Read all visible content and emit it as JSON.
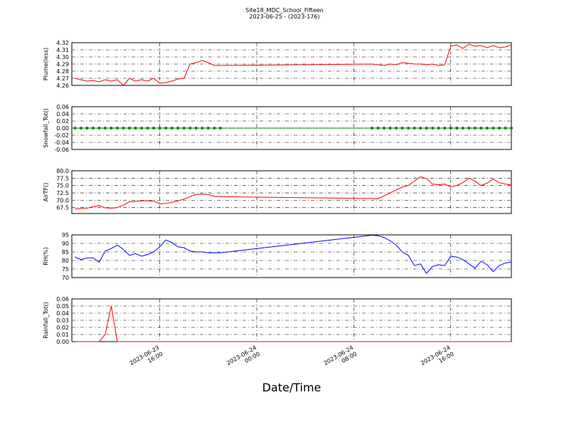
{
  "chart_data": [
    {
      "type": "line",
      "title": "Site18_MDC_School_Fifteen",
      "subtitle": "2023-06-25 - (2023-176)",
      "ylabel": "Plume(less)",
      "color": "#ff0000",
      "x": [
        "2023-06-23 09:00",
        "2023-06-23 09:30",
        "2023-06-23 10:00",
        "2023-06-23 10:30",
        "2023-06-23 11:00",
        "2023-06-23 11:30",
        "2023-06-23 12:00",
        "2023-06-23 12:30",
        "2023-06-23 13:00",
        "2023-06-23 13:30",
        "2023-06-23 14:00",
        "2023-06-23 14:30",
        "2023-06-23 15:00",
        "2023-06-23 15:30",
        "2023-06-23 16:00",
        "2023-06-23 16:30",
        "2023-06-23 17:00",
        "2023-06-23 17:30",
        "2023-06-23 18:00",
        "2023-06-23 18:30",
        "2023-06-23 19:00",
        "2023-06-23 19:30",
        "2023-06-23 20:00",
        "2023-06-23 20:30",
        "2023-06-23 21:00",
        "2023-06-24 09:30",
        "2023-06-24 10:00",
        "2023-06-24 10:30",
        "2023-06-24 11:00",
        "2023-06-24 11:30",
        "2023-06-24 12:00",
        "2023-06-24 12:30",
        "2023-06-24 13:00",
        "2023-06-24 13:30",
        "2023-06-24 14:00",
        "2023-06-24 14:30",
        "2023-06-24 15:00",
        "2023-06-24 15:30",
        "2023-06-24 16:00",
        "2023-06-24 16:30",
        "2023-06-24 17:00",
        "2023-06-24 17:30",
        "2023-06-24 18:00",
        "2023-06-24 18:30",
        "2023-06-24 19:00",
        "2023-06-24 19:30",
        "2023-06-24 20:00",
        "2023-06-24 20:30",
        "2023-06-24 21:00"
      ],
      "values": [
        4.27,
        4.268,
        4.266,
        4.267,
        4.265,
        4.268,
        4.266,
        4.268,
        4.26,
        4.27,
        4.266,
        4.268,
        4.266,
        4.27,
        4.263,
        4.264,
        4.266,
        4.269,
        4.27,
        4.29,
        4.292,
        4.295,
        4.292,
        4.288,
        4.288,
        4.29,
        4.289,
        4.288,
        4.29,
        4.289,
        4.292,
        4.291,
        4.29,
        4.29,
        4.289,
        4.29,
        4.288,
        4.289,
        4.315,
        4.317,
        4.312,
        4.318,
        4.315,
        4.316,
        4.313,
        4.316,
        4.313,
        4.314,
        4.317
      ],
      "xlim": [
        "2023-06-23 08:45",
        "2023-06-24 21:00"
      ],
      "xticks": [
        "2023-06-23 16:00",
        "2023-06-24 00:00",
        "2023-06-24 08:00",
        "2023-06-24 16:00"
      ],
      "ylim": [
        4.26,
        4.32
      ],
      "yticks": [
        4.26,
        4.27,
        4.28,
        4.29,
        {
          "value": 4.3,
          "label": "4.30"
        },
        4.31,
        4.32
      ],
      "grid": true
    },
    {
      "type": "line",
      "ylabel": "Snowfall_Tot()",
      "color": "#008000",
      "marker": "o",
      "x": [
        "2023-06-23 09:00",
        "2023-06-23 09:30",
        "2023-06-23 10:00",
        "2023-06-23 10:30",
        "2023-06-23 11:00",
        "2023-06-23 11:30",
        "2023-06-23 12:00",
        "2023-06-23 12:30",
        "2023-06-23 13:00",
        "2023-06-23 13:30",
        "2023-06-23 14:00",
        "2023-06-23 14:30",
        "2023-06-23 15:00",
        "2023-06-23 15:30",
        "2023-06-23 16:00",
        "2023-06-23 16:30",
        "2023-06-23 17:00",
        "2023-06-23 17:30",
        "2023-06-23 18:00",
        "2023-06-23 18:30",
        "2023-06-23 19:00",
        "2023-06-23 19:30",
        "2023-06-23 20:00",
        "2023-06-23 20:30",
        "2023-06-23 21:00",
        "2023-06-24 09:30",
        "2023-06-24 10:00",
        "2023-06-24 10:30",
        "2023-06-24 11:00",
        "2023-06-24 11:30",
        "2023-06-24 12:00",
        "2023-06-24 12:30",
        "2023-06-24 13:00",
        "2023-06-24 13:30",
        "2023-06-24 14:00",
        "2023-06-24 14:30",
        "2023-06-24 15:00",
        "2023-06-24 15:30",
        "2023-06-24 16:00",
        "2023-06-24 16:30",
        "2023-06-24 17:00",
        "2023-06-24 17:30",
        "2023-06-24 18:00",
        "2023-06-24 18:30",
        "2023-06-24 19:00",
        "2023-06-24 19:30",
        "2023-06-24 20:00",
        "2023-06-24 20:30",
        "2023-06-24 21:00"
      ],
      "values": [
        0,
        0,
        0,
        0,
        0,
        0,
        0,
        0,
        0,
        0,
        0,
        0,
        0,
        0,
        0,
        0,
        0,
        0,
        0,
        0,
        0,
        0,
        0,
        0,
        0,
        0,
        0,
        0,
        0,
        0,
        0,
        0,
        0,
        0,
        0,
        0,
        0,
        0,
        0,
        0,
        0,
        0,
        0,
        0,
        0,
        0,
        0,
        0,
        0
      ],
      "xlim": [
        "2023-06-23 08:45",
        "2023-06-24 21:00"
      ],
      "xticks": [
        "2023-06-23 16:00",
        "2023-06-24 00:00",
        "2023-06-24 08:00",
        "2023-06-24 16:00"
      ],
      "ylim": [
        -0.06,
        0.06
      ],
      "yticks": [
        -0.06,
        -0.04,
        -0.02,
        {
          "value": 0,
          "label": "0.00"
        },
        0.02,
        0.04,
        0.06
      ],
      "grid": true
    },
    {
      "type": "line",
      "ylabel": "AirTF()",
      "color": "#ff0000",
      "x": [
        "2023-06-23 09:00",
        "2023-06-23 09:30",
        "2023-06-23 10:00",
        "2023-06-23 10:30",
        "2023-06-23 11:00",
        "2023-06-23 11:30",
        "2023-06-23 12:00",
        "2023-06-23 12:30",
        "2023-06-23 13:00",
        "2023-06-23 13:30",
        "2023-06-23 14:00",
        "2023-06-23 14:30",
        "2023-06-23 15:00",
        "2023-06-23 15:30",
        "2023-06-23 16:00",
        "2023-06-23 16:30",
        "2023-06-23 17:00",
        "2023-06-23 17:30",
        "2023-06-23 18:00",
        "2023-06-23 18:30",
        "2023-06-23 19:00",
        "2023-06-23 19:30",
        "2023-06-23 20:00",
        "2023-06-23 20:30",
        "2023-06-23 21:00",
        "2023-06-24 09:30",
        "2023-06-24 10:00",
        "2023-06-24 10:30",
        "2023-06-24 11:00",
        "2023-06-24 11:30",
        "2023-06-24 12:00",
        "2023-06-24 12:30",
        "2023-06-24 13:00",
        "2023-06-24 13:30",
        "2023-06-24 14:00",
        "2023-06-24 14:30",
        "2023-06-24 15:00",
        "2023-06-24 15:30",
        "2023-06-24 16:00",
        "2023-06-24 16:30",
        "2023-06-24 17:00",
        "2023-06-24 17:30",
        "2023-06-24 18:00",
        "2023-06-24 18:30",
        "2023-06-24 19:00",
        "2023-06-24 19:30",
        "2023-06-24 20:00",
        "2023-06-24 20:30",
        "2023-06-24 21:00"
      ],
      "values": [
        67.0,
        67.2,
        67.3,
        67.8,
        68.2,
        67.4,
        67.3,
        67.5,
        68.3,
        69.5,
        69.6,
        69.8,
        69.8,
        69.7,
        68.8,
        68.9,
        69.3,
        69.8,
        70.4,
        71.2,
        72.0,
        72.1,
        71.9,
        71.3,
        71.2,
        70.6,
        70.5,
        71.5,
        72.5,
        73.5,
        74.5,
        75.0,
        76.5,
        78.0,
        77.3,
        75.5,
        75.3,
        75.5,
        74.5,
        75.0,
        76.0,
        77.5,
        76.5,
        75.0,
        75.8,
        77.2,
        76.0,
        75.5,
        75.2
      ],
      "xlim": [
        "2023-06-23 08:45",
        "2023-06-24 21:00"
      ],
      "xticks": [
        "2023-06-23 16:00",
        "2023-06-24 00:00",
        "2023-06-24 08:00",
        "2023-06-24 16:00"
      ],
      "ylim": [
        65.5,
        80
      ],
      "yticks": [
        67.5,
        {
          "value": 70,
          "label": "70.0"
        },
        72.5,
        {
          "value": 75,
          "label": "75.0"
        },
        77.5,
        {
          "value": 80,
          "label": "80.0"
        }
      ],
      "grid": true
    },
    {
      "type": "line",
      "ylabel": "RH(%)",
      "color": "#0000ff",
      "x": [
        "2023-06-23 09:00",
        "2023-06-23 09:30",
        "2023-06-23 10:00",
        "2023-06-23 10:30",
        "2023-06-23 11:00",
        "2023-06-23 11:30",
        "2023-06-23 12:00",
        "2023-06-23 12:30",
        "2023-06-23 13:00",
        "2023-06-23 13:30",
        "2023-06-23 14:00",
        "2023-06-23 14:30",
        "2023-06-23 15:00",
        "2023-06-23 15:30",
        "2023-06-23 16:00",
        "2023-06-23 16:30",
        "2023-06-23 17:00",
        "2023-06-23 17:30",
        "2023-06-23 18:00",
        "2023-06-23 18:30",
        "2023-06-23 19:00",
        "2023-06-23 19:30",
        "2023-06-23 20:00",
        "2023-06-23 20:30",
        "2023-06-23 21:00",
        "2023-06-24 09:30",
        "2023-06-24 10:00",
        "2023-06-24 10:30",
        "2023-06-24 11:00",
        "2023-06-24 11:30",
        "2023-06-24 12:00",
        "2023-06-24 12:30",
        "2023-06-24 13:00",
        "2023-06-24 13:30",
        "2023-06-24 14:00",
        "2023-06-24 14:30",
        "2023-06-24 15:00",
        "2023-06-24 15:30",
        "2023-06-24 16:00",
        "2023-06-24 16:30",
        "2023-06-24 17:00",
        "2023-06-24 17:30",
        "2023-06-24 18:00",
        "2023-06-24 18:30",
        "2023-06-24 19:00",
        "2023-06-24 19:30",
        "2023-06-24 20:00",
        "2023-06-24 20:30",
        "2023-06-24 21:00"
      ],
      "values": [
        82,
        80.5,
        81.5,
        81.5,
        79,
        85.5,
        87,
        89,
        86.5,
        83,
        84,
        82.5,
        83.5,
        85,
        88,
        92,
        90.5,
        88,
        87.5,
        85.5,
        85,
        85,
        84.5,
        84.5,
        84.5,
        94.8,
        94.5,
        93.5,
        91.5,
        89,
        85,
        83,
        77,
        78,
        72.5,
        76.5,
        77.5,
        77,
        82.5,
        82,
        80.5,
        78,
        75.5,
        79.5,
        77.5,
        73.5,
        77,
        78.5,
        79
      ],
      "xlim": [
        "2023-06-23 08:45",
        "2023-06-24 21:00"
      ],
      "xticks": [
        "2023-06-23 16:00",
        "2023-06-24 00:00",
        "2023-06-24 08:00",
        "2023-06-24 16:00"
      ],
      "ylim": [
        70,
        95
      ],
      "yticks": [
        70,
        75,
        80,
        85,
        90,
        95
      ],
      "grid": true
    },
    {
      "type": "line",
      "ylabel": "Rainfall_Tot()",
      "xlabel": "Date/Time",
      "color": "#ff0000",
      "x": [
        "2023-06-23 09:00",
        "2023-06-23 09:30",
        "2023-06-23 10:00",
        "2023-06-23 10:30",
        "2023-06-23 11:00",
        "2023-06-23 11:30",
        "2023-06-23 12:00",
        "2023-06-23 12:30",
        "2023-06-23 13:00",
        "2023-06-23 13:30",
        "2023-06-23 14:00",
        "2023-06-23 14:30",
        "2023-06-23 15:00",
        "2023-06-23 15:30",
        "2023-06-23 16:00",
        "2023-06-23 16:30",
        "2023-06-23 17:00",
        "2023-06-23 17:30",
        "2023-06-23 18:00",
        "2023-06-23 18:30",
        "2023-06-23 19:00",
        "2023-06-23 19:30",
        "2023-06-23 20:00",
        "2023-06-23 20:30",
        "2023-06-23 21:00",
        "2023-06-24 09:30",
        "2023-06-24 10:00",
        "2023-06-24 10:30",
        "2023-06-24 11:00",
        "2023-06-24 11:30",
        "2023-06-24 12:00",
        "2023-06-24 12:30",
        "2023-06-24 13:00",
        "2023-06-24 13:30",
        "2023-06-24 14:00",
        "2023-06-24 14:30",
        "2023-06-24 15:00",
        "2023-06-24 15:30",
        "2023-06-24 16:00",
        "2023-06-24 16:30",
        "2023-06-24 17:00",
        "2023-06-24 17:30",
        "2023-06-24 18:00",
        "2023-06-24 18:30",
        "2023-06-24 19:00",
        "2023-06-24 19:30",
        "2023-06-24 20:00",
        "2023-06-24 20:30",
        "2023-06-24 21:00"
      ],
      "values": [
        0,
        0,
        0,
        0,
        0,
        0.01,
        0.05,
        0,
        0,
        0,
        0,
        0,
        0,
        0,
        0,
        0,
        0,
        0,
        0,
        0,
        0,
        0,
        0,
        0,
        0,
        0,
        0,
        0,
        0,
        0,
        0,
        0,
        0,
        0,
        0,
        0,
        0,
        0,
        0,
        0,
        0,
        0,
        0,
        0,
        0,
        0,
        0,
        0,
        0
      ],
      "xlim": [
        "2023-06-23 08:45",
        "2023-06-24 21:00"
      ],
      "xticks": [
        "2023-06-23 16:00",
        "2023-06-24 00:00",
        "2023-06-24 08:00",
        "2023-06-24 16:00"
      ],
      "ylim": [
        0,
        0.06
      ],
      "yticks": [
        {
          "value": 0,
          "label": "0.00"
        },
        0.01,
        0.02,
        0.03,
        0.04,
        0.05,
        0.06
      ],
      "grid": true
    }
  ]
}
